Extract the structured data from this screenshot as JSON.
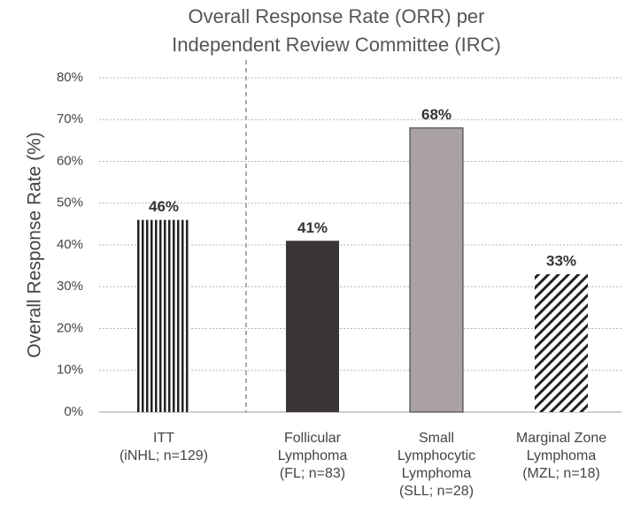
{
  "chart_data": {
    "type": "bar",
    "title": "Overall Response Rate (ORR) per\nIndependent Review Committee (IRC)",
    "y_label": "Overall Response Rate (%)",
    "categories": [
      "ITT\n(iNHL; n=129)",
      "Follicular\nLymphoma\n(FL; n=83)",
      "Small\nLymphocytic\nLymphoma\n(SLL; n=28)",
      "Marginal Zone\nLymphoma\n(MZL; n=18)"
    ],
    "values": [
      46,
      41,
      68,
      33
    ],
    "value_labels": [
      "46%",
      "41%",
      "68%",
      "33%"
    ],
    "colors": [
      "#222222",
      "#3b3536",
      "#aaa2a2",
      "#222222"
    ],
    "hatch": [
      "vertical",
      "none",
      "none",
      "diagonal"
    ],
    "ylim": [
      0,
      80
    ],
    "yticks": [
      {
        "value": 0,
        "label": "0%"
      },
      {
        "value": 10,
        "label": "10%"
      },
      {
        "value": 20,
        "label": "20%"
      },
      {
        "value": 30,
        "label": "30%"
      },
      {
        "value": 40,
        "label": "40%"
      },
      {
        "value": 50,
        "label": "50%"
      },
      {
        "value": 60,
        "label": "60%"
      },
      {
        "value": 70,
        "label": "70%"
      },
      {
        "value": 80,
        "label": "80%"
      }
    ],
    "grid": true
  }
}
